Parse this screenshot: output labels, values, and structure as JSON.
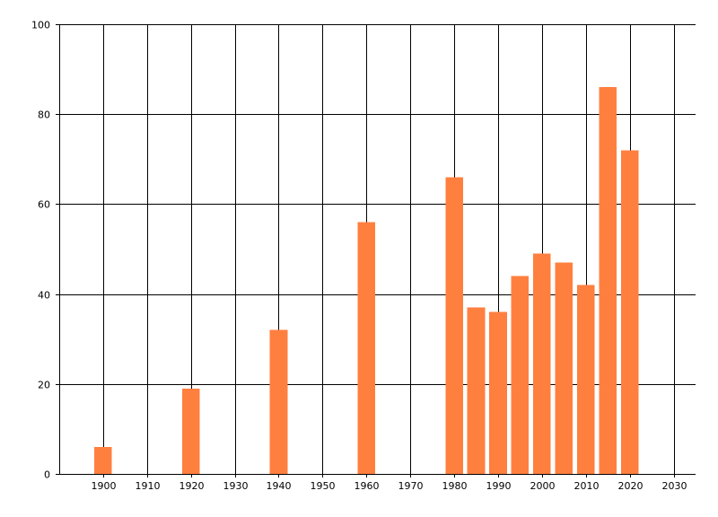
{
  "chart_data": {
    "type": "bar",
    "title": "",
    "xlabel": "",
    "ylabel": "",
    "x": [
      1900,
      1920,
      1940,
      1960,
      1980,
      1985,
      1990,
      1995,
      2000,
      2005,
      2010,
      2015,
      2020
    ],
    "values": [
      6,
      19,
      32,
      56,
      66,
      37,
      36,
      44,
      49,
      47,
      42,
      86,
      72
    ],
    "xlim": [
      1890,
      2035
    ],
    "ylim": [
      0,
      100
    ],
    "x_ticks": [
      1900,
      1910,
      1920,
      1930,
      1940,
      1950,
      1960,
      1970,
      1980,
      1990,
      2000,
      2010,
      2020,
      2030
    ],
    "y_ticks": [
      0,
      20,
      40,
      60,
      80,
      100
    ],
    "bar_color": "#ff7f3f",
    "grid": true,
    "legend": "none"
  }
}
